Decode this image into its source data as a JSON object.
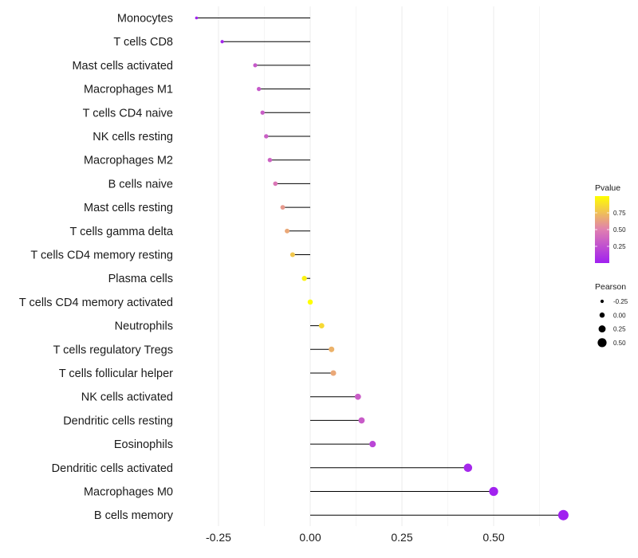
{
  "chart_data": {
    "type": "lollipop",
    "title": "",
    "xlabel": "",
    "ylabel": "",
    "xlim": [
      -0.33,
      0.71
    ],
    "x_ticks": [
      -0.25,
      0.0,
      0.25,
      0.5
    ],
    "x_tick_labels": [
      "-0.25",
      "0.00",
      "0.25",
      "0.50"
    ],
    "grid": true,
    "categories": [
      "Monocytes",
      "T cells CD8",
      "Mast cells activated",
      "Macrophages M1",
      "T cells CD4 naive",
      "NK cells resting",
      "Macrophages M2",
      "B cells naive",
      "Mast cells resting",
      "T cells gamma delta",
      "T cells CD4 memory resting",
      "Plasma cells",
      "T cells CD4 memory activated",
      "Neutrophils",
      "T cells regulatory  Tregs ",
      "T cells follicular helper",
      "NK cells activated",
      "Dendritic cells resting",
      "Eosinophils",
      "Dendritic cells activated",
      "Macrophages M0",
      "B cells memory"
    ],
    "pearson": [
      -0.31,
      -0.24,
      -0.15,
      -0.14,
      -0.13,
      -0.12,
      -0.11,
      -0.095,
      -0.075,
      -0.063,
      -0.048,
      -0.016,
      0.0,
      0.031,
      0.058,
      0.063,
      0.13,
      0.14,
      0.17,
      0.43,
      0.5,
      0.69
    ],
    "pvalue": [
      0.01,
      0.03,
      0.3,
      0.3,
      0.32,
      0.33,
      0.35,
      0.45,
      0.6,
      0.66,
      0.78,
      0.95,
      1.0,
      0.85,
      0.7,
      0.66,
      0.32,
      0.31,
      0.2,
      0.04,
      0.01,
      0.0
    ],
    "color_legend": {
      "title": "Pvalue",
      "ticks": [
        0.25,
        0.5,
        0.75
      ],
      "tick_labels": [
        "0.25",
        "0.50",
        "0.75"
      ],
      "low_color": "#a020f0",
      "mid_color": "#e07fb0",
      "high_color": "#ffff00"
    },
    "size_legend": {
      "title": "Pearson",
      "values": [
        -0.25,
        0.0,
        0.25,
        0.5
      ],
      "labels": [
        "-0.25",
        "0.00",
        "0.25",
        "0.50"
      ]
    },
    "segment_color": "#000000",
    "grid_color": "#ebebeb"
  }
}
